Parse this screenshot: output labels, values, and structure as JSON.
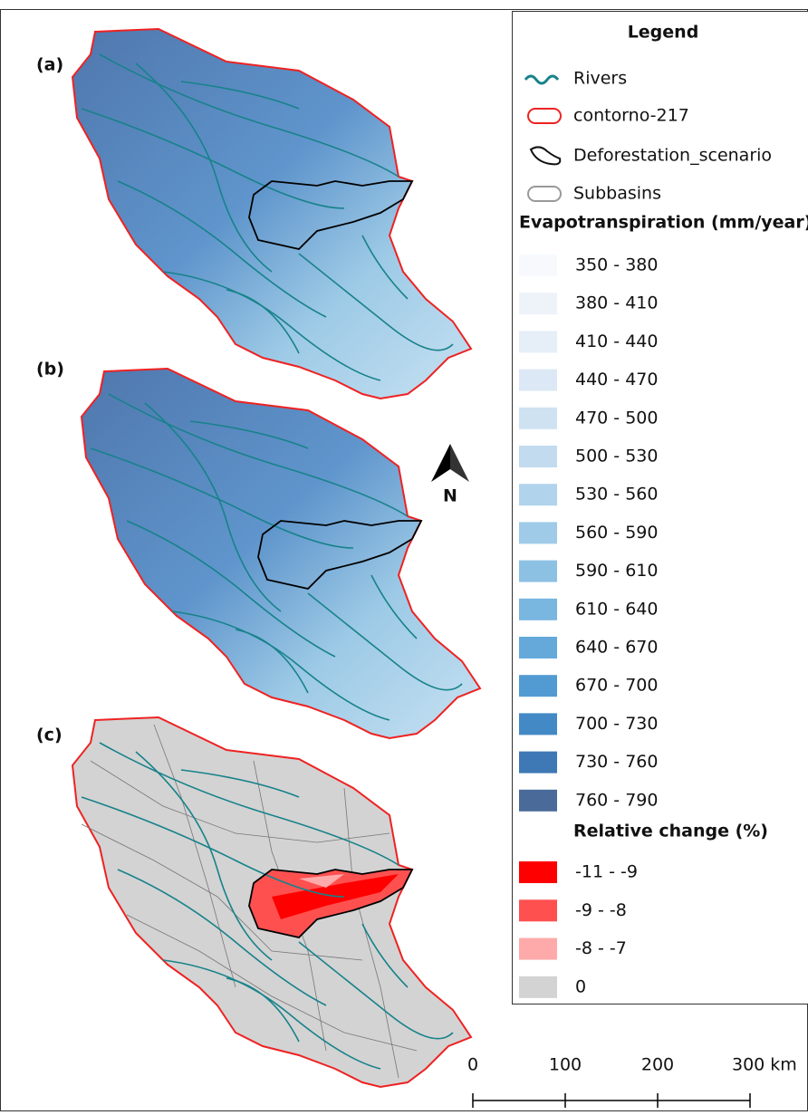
{
  "panels": [
    "(a)",
    "(b)",
    "(c)"
  ],
  "legend": {
    "title": "Legend",
    "layers": [
      "Rivers",
      "contorno-217",
      "Deforestation_scenario",
      "Subbasins"
    ],
    "et_title": "Evapotranspiration (mm/year)",
    "et_classes": [
      {
        "label": "350 - 380",
        "color": "#f7f9fd"
      },
      {
        "label": "380 - 410",
        "color": "#eef3fa"
      },
      {
        "label": "410 - 440",
        "color": "#e6eef8"
      },
      {
        "label": "440 - 470",
        "color": "#dce8f5"
      },
      {
        "label": "470 - 500",
        "color": "#cfe2f2"
      },
      {
        "label": "500 - 530",
        "color": "#c2dbef"
      },
      {
        "label": "530 - 560",
        "color": "#b1d3ec"
      },
      {
        "label": "560 - 590",
        "color": "#a0cbe8"
      },
      {
        "label": "590 - 610",
        "color": "#8dc1e4"
      },
      {
        "label": "610 - 640",
        "color": "#79b6e0"
      },
      {
        "label": "640 - 670",
        "color": "#64a9da"
      },
      {
        "label": "670 - 700",
        "color": "#519bd2"
      },
      {
        "label": "700 - 730",
        "color": "#4389c6"
      },
      {
        "label": "730 - 760",
        "color": "#3e78b5"
      },
      {
        "label": "760 - 790",
        "color": "#4a6a9a"
      }
    ],
    "rc_title": "Relative change (%)",
    "rc_classes": [
      {
        "label": "-11 - -9",
        "color": "#ff0000"
      },
      {
        "label": "-9 - -8",
        "color": "#ff5050"
      },
      {
        "label": "-8 - -7",
        "color": "#ffaaaa"
      },
      {
        "label": "0",
        "color": "#d3d3d3"
      }
    ]
  },
  "north": "N",
  "scale": [
    "0",
    "100",
    "200",
    "300 km"
  ]
}
